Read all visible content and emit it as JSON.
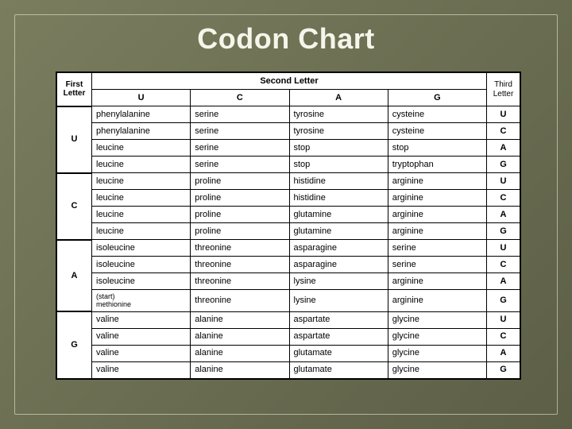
{
  "title": "Codon Chart",
  "table": {
    "type": "table",
    "first_letter_header": "First\nLetter",
    "second_letter_header": "Second Letter",
    "third_letter_header": "Third\nLetter",
    "second_letters": [
      "U",
      "C",
      "A",
      "G"
    ],
    "third_letters": [
      "U",
      "C",
      "A",
      "G"
    ],
    "first_letters": [
      "U",
      "C",
      "A",
      "G"
    ],
    "rows": [
      [
        "phenylalanine",
        "serine",
        "tyrosine",
        "cysteine"
      ],
      [
        "phenylalanine",
        "serine",
        "tyrosine",
        "cysteine"
      ],
      [
        "leucine",
        "serine",
        "stop",
        "stop"
      ],
      [
        "leucine",
        "serine",
        "stop",
        "tryptophan"
      ],
      [
        "leucine",
        "proline",
        "histidine",
        "arginine"
      ],
      [
        "leucine",
        "proline",
        "histidine",
        "arginine"
      ],
      [
        "leucine",
        "proline",
        "glutamine",
        "arginine"
      ],
      [
        "leucine",
        "proline",
        "glutamine",
        "arginine"
      ],
      [
        "isoleucine",
        "threonine",
        "asparagine",
        "serine"
      ],
      [
        "isoleucine",
        "threonine",
        "asparagine",
        "serine"
      ],
      [
        "isoleucine",
        "threonine",
        "lysine",
        "arginine"
      ],
      [
        "(start)\nmethionine",
        "threonine",
        "lysine",
        "arginine"
      ],
      [
        "valine",
        "alanine",
        "aspartate",
        "glycine"
      ],
      [
        "valine",
        "alanine",
        "aspartate",
        "glycine"
      ],
      [
        "valine",
        "alanine",
        "glutamate",
        "glycine"
      ],
      [
        "valine",
        "alanine",
        "glutamate",
        "glycine"
      ]
    ],
    "background_color": "#ffffff",
    "border_color": "#000000",
    "text_color": "#000000",
    "header_fontsize": 11,
    "cell_fontsize": 11
  },
  "colors": {
    "page_bg_start": "#7a7d5e",
    "page_bg_end": "#5c5f46",
    "frame_border": "#e6ebd2",
    "title_color": "#f4f6ea"
  }
}
